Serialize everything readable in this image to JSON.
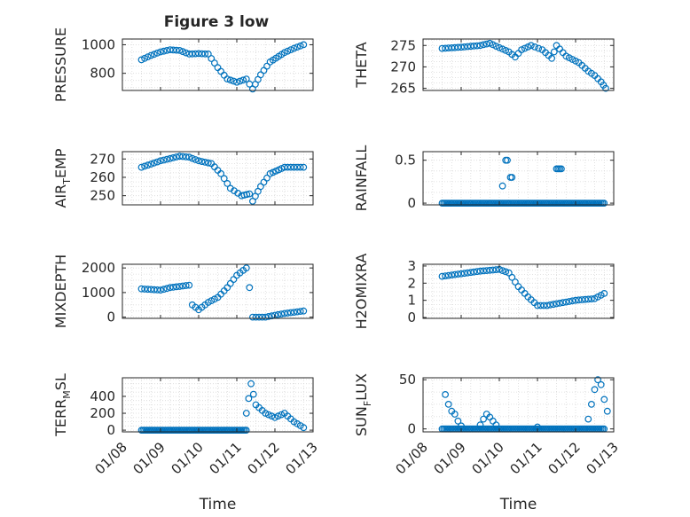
{
  "title": "Figure 3 low",
  "colors": {
    "marker": "#0072BD",
    "axis": "#262626",
    "grid": "#d9d9d9",
    "background": "#ffffff"
  },
  "chart_data": [
    {
      "type": "scatter",
      "title": "Figure 3 low",
      "ylabel": "PRESSURE",
      "xlabel": "",
      "xlim": [
        "01/08",
        "01/13"
      ],
      "ylim": [
        680,
        1040
      ],
      "yticks": [
        800,
        1000
      ],
      "xticks": [
        "01/08",
        "01/09",
        "01/10",
        "01/11",
        "01/12",
        "01/13"
      ],
      "grid": "on (dotted, with minor)",
      "marker": "open-circle",
      "keypoints": [
        [
          "01/08 12:00",
          895
        ],
        [
          "01/08 18:00",
          925
        ],
        [
          "01/09 00:00",
          950
        ],
        [
          "01/09 06:00",
          965
        ],
        [
          "01/09 12:00",
          960
        ],
        [
          "01/09 18:00",
          935
        ],
        [
          "01/10 00:00",
          938
        ],
        [
          "01/10 06:00",
          935
        ],
        [
          "01/10 12:00",
          840
        ],
        [
          "01/10 18:00",
          760
        ],
        [
          "01/11 00:00",
          738
        ],
        [
          "01/11 06:00",
          760
        ],
        [
          "01/11 10:00",
          690
        ],
        [
          "01/11 15:00",
          790
        ],
        [
          "01/11 21:00",
          880
        ],
        [
          "01/12 06:00",
          945
        ],
        [
          "01/12 12:00",
          975
        ],
        [
          "01/12 18:00",
          1000
        ]
      ]
    },
    {
      "type": "scatter",
      "ylabel": "THETA",
      "xlabel": "",
      "xlim": [
        "01/08",
        "01/13"
      ],
      "ylim": [
        264.5,
        276.5
      ],
      "yticks": [
        265,
        270,
        275
      ],
      "xticks": [
        "01/08",
        "01/09",
        "01/10",
        "01/11",
        "01/12",
        "01/13"
      ],
      "grid": "on (dotted, with minor)",
      "marker": "open-circle",
      "keypoints": [
        [
          "01/08 12:00",
          274.3
        ],
        [
          "01/09 00:00",
          274.6
        ],
        [
          "01/09 12:00",
          275.0
        ],
        [
          "01/09 18:00",
          275.5
        ],
        [
          "01/10 00:00",
          274.5
        ],
        [
          "01/10 06:00",
          273.5
        ],
        [
          "01/10 10:00",
          272.3
        ],
        [
          "01/10 14:00",
          274.0
        ],
        [
          "01/10 20:00",
          275.0
        ],
        [
          "01/11 03:00",
          274.0
        ],
        [
          "01/11 09:00",
          272.0
        ],
        [
          "01/11 12:00",
          275.0
        ],
        [
          "01/11 18:00",
          272.5
        ],
        [
          "01/12 02:00",
          271.0
        ],
        [
          "01/12 08:00",
          269.0
        ],
        [
          "01/12 12:00",
          268.0
        ],
        [
          "01/12 16:00",
          266.5
        ],
        [
          "01/12 19:00",
          265.0
        ]
      ]
    },
    {
      "type": "scatter",
      "ylabel": "AIR_TEMP",
      "xlabel": "",
      "xlim": [
        "01/08",
        "01/13"
      ],
      "ylim": [
        245,
        274
      ],
      "yticks": [
        250,
        260,
        270
      ],
      "xticks": [
        "01/08",
        "01/09",
        "01/10",
        "01/11",
        "01/12",
        "01/13"
      ],
      "grid": "on (dotted, with minor)",
      "marker": "open-circle",
      "keypoints": [
        [
          "01/08 12:00",
          265.5
        ],
        [
          "01/09 00:00",
          269
        ],
        [
          "01/09 12:00",
          271.5
        ],
        [
          "01/09 18:00",
          271
        ],
        [
          "01/10 00:00",
          269
        ],
        [
          "01/10 08:00",
          267.5
        ],
        [
          "01/10 14:00",
          262
        ],
        [
          "01/10 20:00",
          254
        ],
        [
          "01/11 03:00",
          250
        ],
        [
          "01/11 08:00",
          251
        ],
        [
          "01/11 10:00",
          247
        ],
        [
          "01/11 15:00",
          255
        ],
        [
          "01/11 21:00",
          262
        ],
        [
          "01/12 06:00",
          265.5
        ],
        [
          "01/12 18:00",
          265.5
        ]
      ]
    },
    {
      "type": "scatter",
      "ylabel": "RAINFALL",
      "xlabel": "",
      "xlim": [
        "01/08",
        "01/13"
      ],
      "ylim": [
        -0.02,
        0.6
      ],
      "yticks": [
        0,
        0.5
      ],
      "xticks": [
        "01/08",
        "01/09",
        "01/10",
        "01/11",
        "01/12",
        "01/13"
      ],
      "grid": "on (dotted, with minor)",
      "marker": "open-circle",
      "baseline": {
        "from": "01/08 12:00",
        "to": "01/12 18:00",
        "value": 0
      },
      "points": [
        [
          "01/10 02:00",
          0.2
        ],
        [
          "01/10 04:00",
          0.5
        ],
        [
          "01/10 05:00",
          0.5
        ],
        [
          "01/10 07:00",
          0.3
        ],
        [
          "01/10 08:00",
          0.3
        ],
        [
          "01/11 12:00",
          0.4
        ],
        [
          "01/11 13:00",
          0.4
        ],
        [
          "01/11 14:00",
          0.4
        ],
        [
          "01/11 15:00",
          0.4
        ]
      ]
    },
    {
      "type": "scatter",
      "ylabel": "MIXDEPTH",
      "xlabel": "",
      "xlim": [
        "01/08",
        "01/13"
      ],
      "ylim": [
        -50,
        2150
      ],
      "yticks": [
        0,
        1000,
        2000
      ],
      "xticks": [
        "01/08",
        "01/09",
        "01/10",
        "01/11",
        "01/12",
        "01/13"
      ],
      "grid": "on (dotted, with minor)",
      "marker": "open-circle",
      "keypoints": [
        [
          "01/08 12:00",
          1150
        ],
        [
          "01/09 00:00",
          1100
        ],
        [
          "01/09 06:00",
          1200
        ],
        [
          "01/09 18:00",
          1300
        ],
        [
          "01/09 20:00",
          500
        ],
        [
          "01/10 00:00",
          300
        ],
        [
          "01/10 06:00",
          600
        ],
        [
          "01/10 12:00",
          800
        ],
        [
          "01/10 18:00",
          1200
        ],
        [
          "01/11 00:00",
          1700
        ],
        [
          "01/11 06:00",
          2000
        ],
        [
          "01/11 08:00",
          1200
        ],
        [
          "01/11 10:00",
          0
        ],
        [
          "01/11 18:00",
          0
        ],
        [
          "01/12 06:00",
          150
        ],
        [
          "01/12 18:00",
          250
        ]
      ]
    },
    {
      "type": "scatter",
      "ylabel": "H2OMIXRA",
      "xlabel": "",
      "xlim": [
        "01/08",
        "01/13"
      ],
      "ylim": [
        -0.05,
        3.1
      ],
      "yticks": [
        0,
        1,
        2,
        3
      ],
      "xticks": [
        "01/08",
        "01/09",
        "01/10",
        "01/11",
        "01/12",
        "01/13"
      ],
      "grid": "on (dotted, with minor)",
      "marker": "open-circle",
      "keypoints": [
        [
          "01/08 12:00",
          2.4
        ],
        [
          "01/09 00:00",
          2.55
        ],
        [
          "01/09 12:00",
          2.7
        ],
        [
          "01/10 00:00",
          2.8
        ],
        [
          "01/10 06:00",
          2.6
        ],
        [
          "01/10 12:00",
          1.8
        ],
        [
          "01/10 18:00",
          1.2
        ],
        [
          "01/11 00:00",
          0.7
        ],
        [
          "01/11 06:00",
          0.7
        ],
        [
          "01/11 12:00",
          0.8
        ],
        [
          "01/12 00:00",
          1.0
        ],
        [
          "01/12 12:00",
          1.1
        ],
        [
          "01/12 18:00",
          1.4
        ]
      ]
    },
    {
      "type": "scatter",
      "ylabel": "TERR_MSL",
      "xlabel": "Time",
      "xlim": [
        "01/08",
        "01/13"
      ],
      "ylim": [
        -20,
        620
      ],
      "yticks": [
        0,
        200,
        400
      ],
      "xticks": [
        "01/08",
        "01/09",
        "01/10",
        "01/11",
        "01/12",
        "01/13"
      ],
      "grid": "on (dotted, with minor)",
      "marker": "open-circle",
      "baseline": {
        "from": "01/08 12:00",
        "to": "01/11 06:00",
        "value": 0
      },
      "keypoints": [
        [
          "01/11 06:00",
          200
        ],
        [
          "01/11 09:00",
          550
        ],
        [
          "01/11 12:00",
          300
        ],
        [
          "01/11 18:00",
          200
        ],
        [
          "01/12 00:00",
          150
        ],
        [
          "01/12 06:00",
          200
        ],
        [
          "01/12 12:00",
          100
        ],
        [
          "01/12 18:00",
          30
        ]
      ]
    },
    {
      "type": "scatter",
      "ylabel": "SUN_FLUX",
      "xlabel": "Time",
      "xlim": [
        "01/08",
        "01/13"
      ],
      "ylim": [
        -3,
        52
      ],
      "yticks": [
        0,
        50
      ],
      "xticks": [
        "01/08",
        "01/09",
        "01/10",
        "01/11",
        "01/12",
        "01/13"
      ],
      "grid": "on (dotted, with minor)",
      "marker": "open-circle",
      "baseline": {
        "from": "01/08 12:00",
        "to": "01/12 18:00",
        "value": 0
      },
      "points": [
        [
          "01/08 14:00",
          35
        ],
        [
          "01/08 16:00",
          25
        ],
        [
          "01/08 18:00",
          18
        ],
        [
          "01/08 20:00",
          15
        ],
        [
          "01/08 22:00",
          8
        ],
        [
          "01/09 00:00",
          3
        ],
        [
          "01/09 12:00",
          4
        ],
        [
          "01/09 14:00",
          10
        ],
        [
          "01/09 16:00",
          15
        ],
        [
          "01/09 18:00",
          12
        ],
        [
          "01/09 20:00",
          8
        ],
        [
          "01/09 22:00",
          4
        ],
        [
          "01/11 00:00",
          2
        ],
        [
          "01/12 08:00",
          10
        ],
        [
          "01/12 10:00",
          25
        ],
        [
          "01/12 12:00",
          40
        ],
        [
          "01/12 14:00",
          50
        ],
        [
          "01/12 16:00",
          45
        ],
        [
          "01/12 18:00",
          30
        ],
        [
          "01/12 20:00",
          18
        ]
      ]
    }
  ]
}
